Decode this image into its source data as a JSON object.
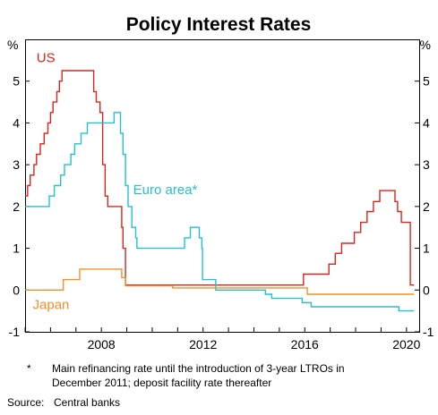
{
  "chart_data": {
    "type": "line",
    "title": "Policy Interest Rates",
    "y_unit": "%",
    "xlim": [
      2005.0,
      2020.5
    ],
    "ylim": [
      -1,
      6
    ],
    "yticks": [
      "-1",
      "0",
      "1",
      "2",
      "3",
      "4",
      "5"
    ],
    "xticks": [
      "2008",
      "2012",
      "2016",
      "2020"
    ],
    "grid": false,
    "series": [
      {
        "name": "US",
        "color": "#d7261e",
        "step": true,
        "points": [
          [
            2005.0,
            2.25
          ],
          [
            2005.1,
            2.5
          ],
          [
            2005.2,
            2.75
          ],
          [
            2005.35,
            3.0
          ],
          [
            2005.45,
            3.25
          ],
          [
            2005.6,
            3.5
          ],
          [
            2005.75,
            3.75
          ],
          [
            2005.9,
            4.0
          ],
          [
            2006.0,
            4.25
          ],
          [
            2006.1,
            4.5
          ],
          [
            2006.25,
            4.75
          ],
          [
            2006.35,
            5.0
          ],
          [
            2006.45,
            5.25
          ],
          [
            2007.7,
            4.75
          ],
          [
            2007.8,
            4.5
          ],
          [
            2007.95,
            4.25
          ],
          [
            2008.05,
            3.0
          ],
          [
            2008.15,
            2.25
          ],
          [
            2008.25,
            2.0
          ],
          [
            2008.8,
            1.5
          ],
          [
            2008.85,
            1.0
          ],
          [
            2008.95,
            0.12
          ],
          [
            2015.95,
            0.38
          ],
          [
            2016.95,
            0.62
          ],
          [
            2017.2,
            0.88
          ],
          [
            2017.45,
            1.12
          ],
          [
            2017.95,
            1.38
          ],
          [
            2018.2,
            1.62
          ],
          [
            2018.45,
            1.88
          ],
          [
            2018.7,
            2.12
          ],
          [
            2018.95,
            2.38
          ],
          [
            2019.55,
            2.12
          ],
          [
            2019.65,
            1.88
          ],
          [
            2019.8,
            1.62
          ],
          [
            2020.15,
            0.12
          ],
          [
            2020.3,
            0.12
          ]
        ]
      },
      {
        "name": "Euro area*",
        "color": "#25c0cf",
        "step": true,
        "points": [
          [
            2005.0,
            2.0
          ],
          [
            2005.95,
            2.25
          ],
          [
            2006.15,
            2.5
          ],
          [
            2006.4,
            2.75
          ],
          [
            2006.55,
            3.0
          ],
          [
            2006.8,
            3.25
          ],
          [
            2006.95,
            3.5
          ],
          [
            2007.2,
            3.75
          ],
          [
            2007.45,
            4.0
          ],
          [
            2008.5,
            4.25
          ],
          [
            2008.75,
            3.75
          ],
          [
            2008.85,
            3.25
          ],
          [
            2008.95,
            2.5
          ],
          [
            2009.05,
            2.0
          ],
          [
            2009.2,
            1.5
          ],
          [
            2009.35,
            1.25
          ],
          [
            2009.4,
            1.0
          ],
          [
            2011.27,
            1.25
          ],
          [
            2011.5,
            1.5
          ],
          [
            2011.85,
            1.25
          ],
          [
            2011.95,
            1.0
          ],
          [
            2011.98,
            0.25
          ],
          [
            2012.5,
            0.0
          ],
          [
            2014.45,
            -0.1
          ],
          [
            2014.7,
            -0.2
          ],
          [
            2015.9,
            -0.3
          ],
          [
            2016.25,
            -0.4
          ],
          [
            2019.7,
            -0.5
          ],
          [
            2020.3,
            -0.5
          ]
        ]
      },
      {
        "name": "Japan",
        "color": "#f0902a",
        "step": true,
        "points": [
          [
            2005.0,
            0.0
          ],
          [
            2006.5,
            0.25
          ],
          [
            2007.15,
            0.5
          ],
          [
            2008.8,
            0.3
          ],
          [
            2008.95,
            0.1
          ],
          [
            2010.8,
            0.05
          ],
          [
            2016.1,
            -0.1
          ],
          [
            2020.3,
            -0.1
          ]
        ]
      }
    ],
    "footnote_marker": "*",
    "footnote_lines": [
      "Main refinancing rate until the introduction of 3-year LTROs in",
      "December 2011; deposit facility rate thereafter"
    ],
    "source_label": "Source:",
    "source_text": "Central banks"
  }
}
